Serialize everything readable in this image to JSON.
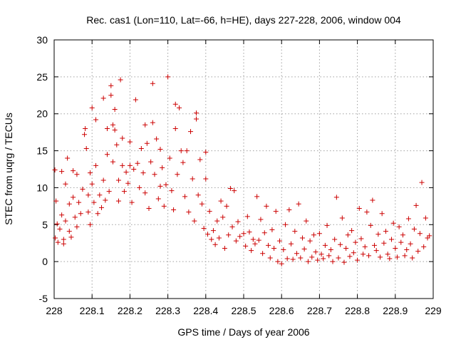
{
  "chart_data": {
    "type": "scatter",
    "title": "Rec. cas1 (Lon=110, Lat=-66, h=HE), days 227-228, 2006, window 004",
    "xlabel": "GPS time / Days of year 2006",
    "ylabel": "STEC from uqrg / TECUs",
    "xlim": [
      228,
      229
    ],
    "ylim": [
      -5,
      30
    ],
    "xticks": [
      "228",
      "228.1",
      "228.2",
      "228.3",
      "228.4",
      "228.5",
      "228.6",
      "228.7",
      "228.8",
      "228.9",
      "229"
    ],
    "yticks": [
      "-5",
      "0",
      "5",
      "10",
      "15",
      "20",
      "25",
      "30"
    ],
    "grid": true,
    "marker": "+",
    "color": "#cc0000",
    "series": [
      {
        "points": [
          [
            228.002,
            12.4
          ],
          [
            228.005,
            8.2
          ],
          [
            228.008,
            5.1
          ],
          [
            228.003,
            3.2
          ],
          [
            228.01,
            2.6
          ],
          [
            228.015,
            4.4
          ],
          [
            228.02,
            12.2
          ],
          [
            228.02,
            6.3
          ],
          [
            228.025,
            2.4
          ],
          [
            228.025,
            3.0
          ],
          [
            228.03,
            10.5
          ],
          [
            228.03,
            5.5
          ],
          [
            228.035,
            14.0
          ],
          [
            228.04,
            7.8
          ],
          [
            228.04,
            4.1
          ],
          [
            228.045,
            3.3
          ],
          [
            228.05,
            12.3
          ],
          [
            228.05,
            8.7
          ],
          [
            228.055,
            6.0
          ],
          [
            228.06,
            11.8
          ],
          [
            228.06,
            4.7
          ],
          [
            228.065,
            8.0
          ],
          [
            228.07,
            6.5
          ],
          [
            228.075,
            9.8
          ],
          [
            228.08,
            17.2
          ],
          [
            228.082,
            18.0
          ],
          [
            228.085,
            15.3
          ],
          [
            228.09,
            9.0
          ],
          [
            228.09,
            6.7
          ],
          [
            228.095,
            12.0
          ],
          [
            228.095,
            5.0
          ],
          [
            228.1,
            20.8
          ],
          [
            228.1,
            10.5
          ],
          [
            228.105,
            8.0
          ],
          [
            228.11,
            19.2
          ],
          [
            228.11,
            13.0
          ],
          [
            228.115,
            6.5
          ],
          [
            228.12,
            9.0
          ],
          [
            228.125,
            7.3
          ],
          [
            228.13,
            22.1
          ],
          [
            228.13,
            11.0
          ],
          [
            228.135,
            8.3
          ],
          [
            228.14,
            18.0
          ],
          [
            228.14,
            14.5
          ],
          [
            228.145,
            9.5
          ],
          [
            228.15,
            23.8
          ],
          [
            228.15,
            22.5
          ],
          [
            228.155,
            18.5
          ],
          [
            228.155,
            13.5
          ],
          [
            228.16,
            20.6
          ],
          [
            228.16,
            17.8
          ],
          [
            228.165,
            15.8
          ],
          [
            228.17,
            11.0
          ],
          [
            228.17,
            8.2
          ],
          [
            228.175,
            24.6
          ],
          [
            228.18,
            16.7
          ],
          [
            228.18,
            13.0
          ],
          [
            228.185,
            9.5
          ],
          [
            228.19,
            12.1
          ],
          [
            228.195,
            10.6
          ],
          [
            228.2,
            16.2
          ],
          [
            228.2,
            13.0
          ],
          [
            228.205,
            8.0
          ],
          [
            228.21,
            12.5
          ],
          [
            228.215,
            21.9
          ],
          [
            228.22,
            13.3
          ],
          [
            228.225,
            10.0
          ],
          [
            228.23,
            15.3
          ],
          [
            228.235,
            12.0
          ],
          [
            228.24,
            18.5
          ],
          [
            228.24,
            9.3
          ],
          [
            228.245,
            16.0
          ],
          [
            228.25,
            7.2
          ],
          [
            228.255,
            13.5
          ],
          [
            228.26,
            24.1
          ],
          [
            228.26,
            18.8
          ],
          [
            228.265,
            11.8
          ],
          [
            228.27,
            16.6
          ],
          [
            228.275,
            8.5
          ],
          [
            228.28,
            15.2
          ],
          [
            228.28,
            10.2
          ],
          [
            228.285,
            12.7
          ],
          [
            228.29,
            7.5
          ],
          [
            228.295,
            10.4
          ],
          [
            228.3,
            25.0
          ],
          [
            228.305,
            14.0
          ],
          [
            228.31,
            9.6
          ],
          [
            228.315,
            7.0
          ],
          [
            228.32,
            21.3
          ],
          [
            228.32,
            18.0
          ],
          [
            228.325,
            11.8
          ],
          [
            228.33,
            20.8
          ],
          [
            228.335,
            15.0
          ],
          [
            228.34,
            13.4
          ],
          [
            228.345,
            8.8
          ],
          [
            228.35,
            15.0
          ],
          [
            228.355,
            6.7
          ],
          [
            228.36,
            17.6
          ],
          [
            228.365,
            11.2
          ],
          [
            228.37,
            5.5
          ],
          [
            228.375,
            20.1
          ],
          [
            228.375,
            19.3
          ],
          [
            228.38,
            9.0
          ],
          [
            228.385,
            13.8
          ],
          [
            228.39,
            7.8
          ],
          [
            228.395,
            4.5
          ],
          [
            228.4,
            14.8
          ],
          [
            228.4,
            11.2
          ],
          [
            228.405,
            3.7
          ],
          [
            228.41,
            6.8
          ],
          [
            228.415,
            3.0
          ],
          [
            228.42,
            4.2
          ],
          [
            228.425,
            2.3
          ],
          [
            228.43,
            5.5
          ],
          [
            228.435,
            3.2
          ],
          [
            228.44,
            8.2
          ],
          [
            228.445,
            6.0
          ],
          [
            228.45,
            1.8
          ],
          [
            228.455,
            7.5
          ],
          [
            228.46,
            3.6
          ],
          [
            228.465,
            9.9
          ],
          [
            228.47,
            4.7
          ],
          [
            228.475,
            9.6
          ],
          [
            228.48,
            2.8
          ],
          [
            228.485,
            5.4
          ],
          [
            228.49,
            3.4
          ],
          [
            228.5,
            3.8
          ],
          [
            228.505,
            2.1
          ],
          [
            228.51,
            6.1
          ],
          [
            228.515,
            4.0
          ],
          [
            228.52,
            1.5
          ],
          [
            228.525,
            3.0
          ],
          [
            228.53,
            2.4
          ],
          [
            228.535,
            8.8
          ],
          [
            228.54,
            2.9
          ],
          [
            228.545,
            5.7
          ],
          [
            228.55,
            1.1
          ],
          [
            228.555,
            3.9
          ],
          [
            228.56,
            7.5
          ],
          [
            228.565,
            2.2
          ],
          [
            228.57,
            0.5
          ],
          [
            228.575,
            4.3
          ],
          [
            228.58,
            1.8
          ],
          [
            228.585,
            6.8
          ],
          [
            228.59,
            0.0
          ],
          [
            228.595,
            2.8
          ],
          [
            228.6,
            -0.3
          ],
          [
            228.605,
            1.6
          ],
          [
            228.61,
            5.0
          ],
          [
            228.615,
            0.4
          ],
          [
            228.62,
            7.0
          ],
          [
            228.625,
            2.4
          ],
          [
            228.63,
            0.3
          ],
          [
            228.635,
            4.1
          ],
          [
            228.64,
            1.1
          ],
          [
            228.645,
            7.8
          ],
          [
            228.65,
            0.5
          ],
          [
            228.655,
            3.2
          ],
          [
            228.66,
            1.7
          ],
          [
            228.665,
            5.5
          ],
          [
            228.67,
            0.0
          ],
          [
            228.675,
            2.8
          ],
          [
            228.68,
            0.6
          ],
          [
            228.685,
            3.6
          ],
          [
            228.69,
            1.3
          ],
          [
            228.695,
            0.2
          ],
          [
            228.7,
            3.8
          ],
          [
            228.705,
            1.0
          ],
          [
            228.71,
            0.4
          ],
          [
            228.715,
            2.2
          ],
          [
            228.72,
            4.9
          ],
          [
            228.725,
            0.8
          ],
          [
            228.73,
            1.6
          ],
          [
            228.735,
            0.0
          ],
          [
            228.74,
            3.0
          ],
          [
            228.745,
            8.7
          ],
          [
            228.75,
            0.5
          ],
          [
            228.755,
            2.3
          ],
          [
            228.76,
            5.9
          ],
          [
            228.765,
            -0.1
          ],
          [
            228.77,
            1.8
          ],
          [
            228.775,
            3.6
          ],
          [
            228.78,
            0.7
          ],
          [
            228.785,
            4.2
          ],
          [
            228.79,
            1.2
          ],
          [
            228.795,
            2.6
          ],
          [
            228.8,
            0.2
          ],
          [
            228.805,
            7.2
          ],
          [
            228.81,
            3.1
          ],
          [
            228.815,
            1.0
          ],
          [
            228.82,
            2.0
          ],
          [
            228.825,
            6.7
          ],
          [
            228.83,
            0.8
          ],
          [
            228.835,
            4.9
          ],
          [
            228.84,
            8.3
          ],
          [
            228.845,
            2.2
          ],
          [
            228.85,
            1.5
          ],
          [
            228.855,
            3.7
          ],
          [
            228.86,
            0.6
          ],
          [
            228.865,
            6.5
          ],
          [
            228.87,
            2.5
          ],
          [
            228.875,
            4.1
          ],
          [
            228.88,
            1.0
          ],
          [
            228.885,
            0.4
          ],
          [
            228.89,
            3.0
          ],
          [
            228.895,
            5.2
          ],
          [
            228.9,
            1.8
          ],
          [
            228.905,
            0.6
          ],
          [
            228.91,
            4.7
          ],
          [
            228.915,
            2.6
          ],
          [
            228.92,
            3.6
          ],
          [
            228.925,
            0.8
          ],
          [
            228.93,
            1.6
          ],
          [
            228.935,
            5.8
          ],
          [
            228.94,
            2.4
          ],
          [
            228.945,
            0.5
          ],
          [
            228.95,
            4.4
          ],
          [
            228.955,
            7.6
          ],
          [
            228.96,
            1.4
          ],
          [
            228.965,
            3.8
          ],
          [
            228.97,
            10.7
          ],
          [
            228.975,
            2.0
          ],
          [
            228.98,
            5.9
          ],
          [
            228.985,
            3.2
          ],
          [
            228.99,
            3.5
          ]
        ]
      }
    ]
  }
}
